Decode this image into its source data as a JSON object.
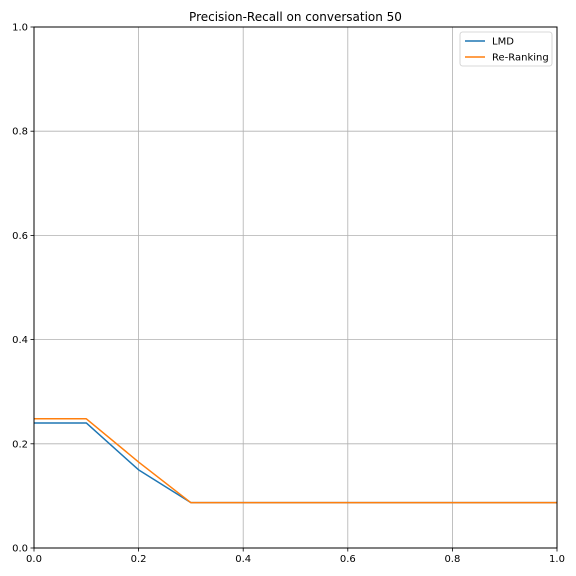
{
  "chart_data": {
    "type": "line",
    "title": "Precision-Recall on conversation 50",
    "xlabel": "",
    "ylabel": "",
    "xlim": [
      0,
      1
    ],
    "ylim": [
      0,
      1
    ],
    "xticks": [
      "0.0",
      "0.2",
      "0.4",
      "0.6",
      "0.8",
      "1.0"
    ],
    "yticks": [
      "0.0",
      "0.2",
      "0.4",
      "0.6",
      "0.8",
      "1.0"
    ],
    "grid": true,
    "legend_position": "top-right",
    "x": [
      0.0,
      0.1,
      0.2,
      0.3,
      0.4,
      0.5,
      0.6,
      0.7,
      0.8,
      0.9,
      1.0
    ],
    "series": [
      {
        "name": "LMD",
        "color": "#1f77b4",
        "values": [
          0.24,
          0.24,
          0.15,
          0.087,
          0.087,
          0.087,
          0.087,
          0.087,
          0.087,
          0.087,
          0.087
        ]
      },
      {
        "name": "Re-Ranking",
        "color": "#ff7f0e",
        "values": [
          0.248,
          0.248,
          0.165,
          0.087,
          0.087,
          0.087,
          0.087,
          0.087,
          0.087,
          0.087,
          0.087
        ]
      }
    ]
  }
}
